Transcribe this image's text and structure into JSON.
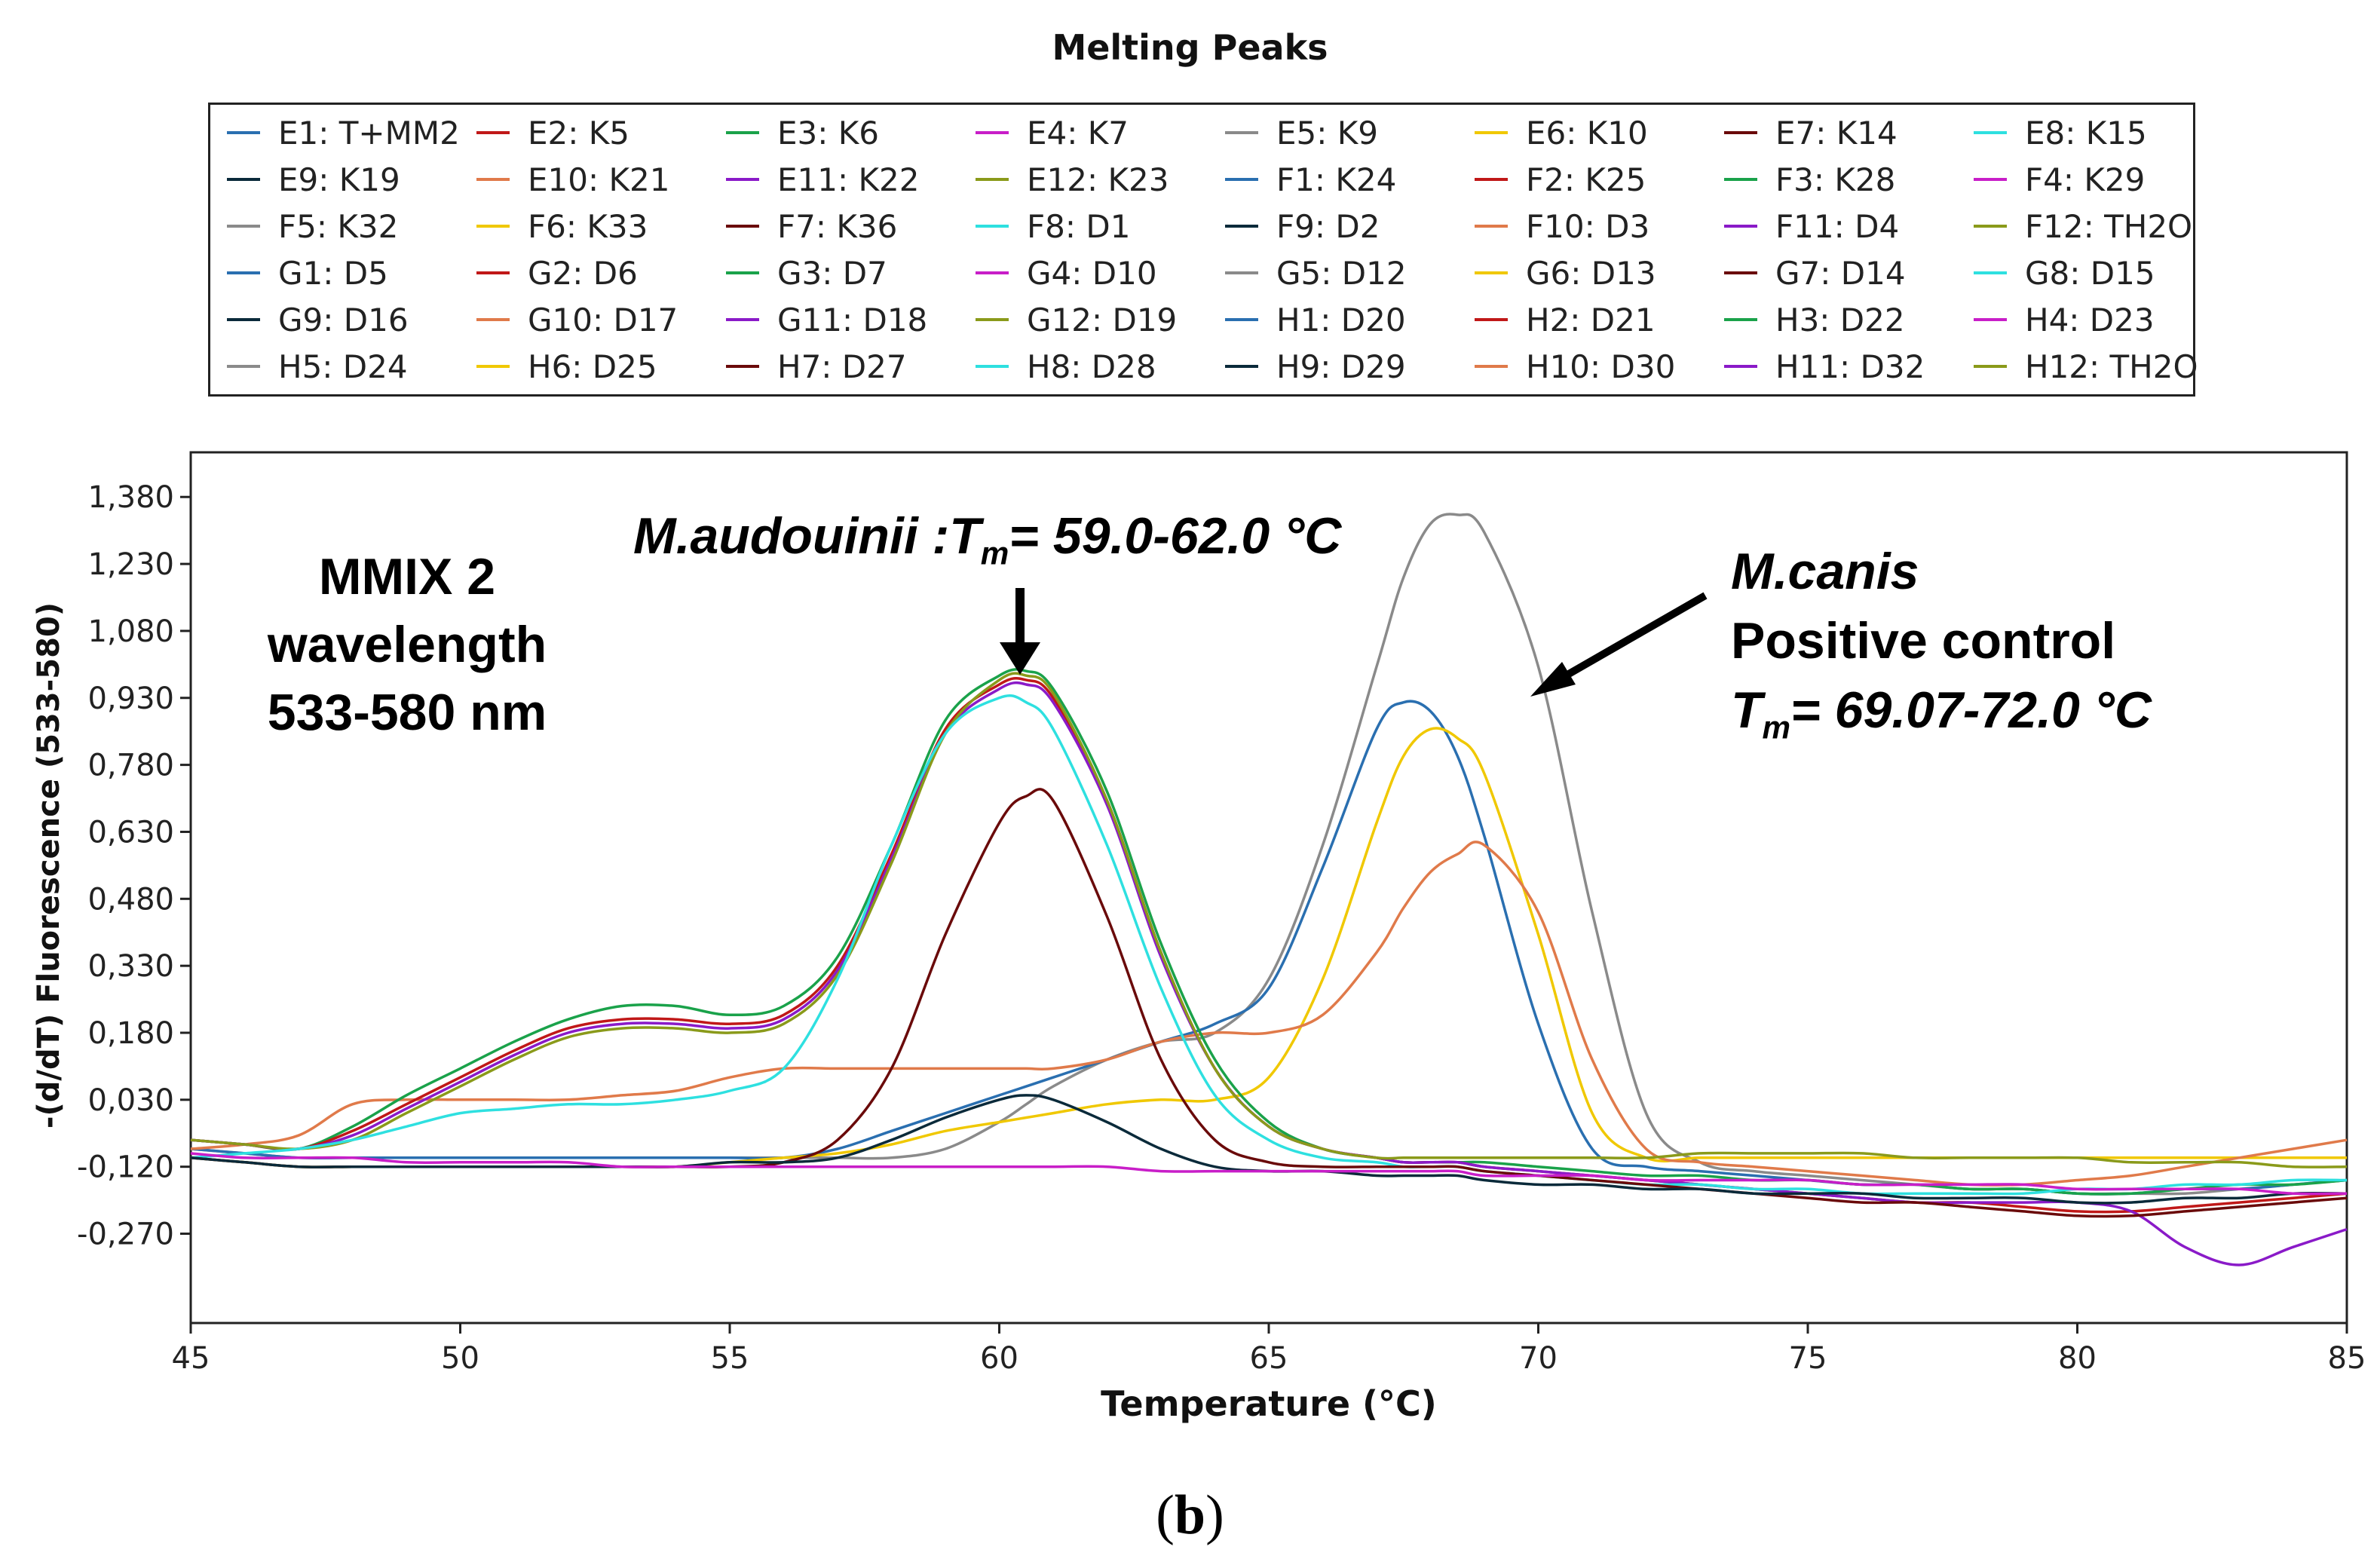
{
  "page_title": "Melting Peaks",
  "subfigure_label_open": "(",
  "subfigure_label_letter": "b",
  "subfigure_label_close": ")",
  "legend": [
    {
      "label": "E1: T+MM2",
      "color": "#2a6fb0"
    },
    {
      "label": "E2: K5",
      "color": "#c01818"
    },
    {
      "label": "E3: K6",
      "color": "#1aa24a"
    },
    {
      "label": "E4: K7",
      "color": "#c81ec8"
    },
    {
      "label": "E5: K9",
      "color": "#8a8a8a"
    },
    {
      "label": "E6: K10",
      "color": "#f0c800"
    },
    {
      "label": "E7: K14",
      "color": "#6a0a0a"
    },
    {
      "label": "E8: K15",
      "color": "#2ee0e0"
    },
    {
      "label": "E9: K19",
      "color": "#0a2a3a"
    },
    {
      "label": "E10: K21",
      "color": "#e07a4a"
    },
    {
      "label": "E11: K22",
      "color": "#8a1ac8"
    },
    {
      "label": "E12: K23",
      "color": "#8a9a1a"
    },
    {
      "label": "F1: K24",
      "color": "#2a6fb0"
    },
    {
      "label": "F2: K25",
      "color": "#c01818"
    },
    {
      "label": "F3: K28",
      "color": "#1aa24a"
    },
    {
      "label": "F4: K29",
      "color": "#c81ec8"
    },
    {
      "label": "F5: K32",
      "color": "#8a8a8a"
    },
    {
      "label": "F6: K33",
      "color": "#f0c800"
    },
    {
      "label": "F7: K36",
      "color": "#6a0a0a"
    },
    {
      "label": "F8: D1",
      "color": "#2ee0e0"
    },
    {
      "label": "F9: D2",
      "color": "#0a2a3a"
    },
    {
      "label": "F10: D3",
      "color": "#e07a4a"
    },
    {
      "label": "F11: D4",
      "color": "#8a1ac8"
    },
    {
      "label": "F12: TH2O",
      "color": "#8a9a1a"
    },
    {
      "label": "G1: D5",
      "color": "#2a6fb0"
    },
    {
      "label": "G2: D6",
      "color": "#c01818"
    },
    {
      "label": "G3: D7",
      "color": "#1aa24a"
    },
    {
      "label": "G4: D10",
      "color": "#c81ec8"
    },
    {
      "label": "G5: D12",
      "color": "#8a8a8a"
    },
    {
      "label": "G6: D13",
      "color": "#f0c800"
    },
    {
      "label": "G7: D14",
      "color": "#6a0a0a"
    },
    {
      "label": "G8: D15",
      "color": "#2ee0e0"
    },
    {
      "label": "G9: D16",
      "color": "#0a2a3a"
    },
    {
      "label": "G10: D17",
      "color": "#e07a4a"
    },
    {
      "label": "G11: D18",
      "color": "#8a1ac8"
    },
    {
      "label": "G12: D19",
      "color": "#8a9a1a"
    },
    {
      "label": "H1: D20",
      "color": "#2a6fb0"
    },
    {
      "label": "H2: D21",
      "color": "#c01818"
    },
    {
      "label": "H3: D22",
      "color": "#1aa24a"
    },
    {
      "label": "H4: D23",
      "color": "#c81ec8"
    },
    {
      "label": "H5: D24",
      "color": "#8a8a8a"
    },
    {
      "label": "H6: D25",
      "color": "#f0c800"
    },
    {
      "label": "H7: D27",
      "color": "#6a0a0a"
    },
    {
      "label": "H8: D28",
      "color": "#2ee0e0"
    },
    {
      "label": "H9: D29",
      "color": "#0a2a3a"
    },
    {
      "label": "H10: D30",
      "color": "#e07a4a"
    },
    {
      "label": "H11: D32",
      "color": "#8a1ac8"
    },
    {
      "label": "H12: TH2O",
      "color": "#8a9a1a"
    }
  ],
  "annotations": {
    "mmix_line1": "MMIX 2",
    "mmix_line2": "wavelength",
    "mmix_line3": "533-580 nm",
    "aud_species": "M.audouinii :T",
    "aud_sub": "m",
    "aud_range": "= 59.0-62.0 °C",
    "canis_species": "M.canis",
    "canis_line2": "Positive control",
    "canis_t": "T",
    "canis_sub": "m",
    "canis_range": "= 69.07-72.0 °C"
  },
  "chart_data": {
    "type": "line",
    "title": "",
    "xlabel": "Temperature (°C)",
    "ylabel": "-(d/dT) Fluorescence (533-580)",
    "xlim": [
      45,
      85
    ],
    "ylim": [
      -0.47,
      1.48
    ],
    "x_ticks": [
      45,
      50,
      55,
      60,
      65,
      70,
      75,
      80,
      85
    ],
    "y_ticks": [
      1.38,
      1.23,
      1.08,
      0.93,
      0.78,
      0.63,
      0.48,
      0.33,
      0.18,
      0.03,
      -0.12,
      -0.27
    ],
    "y_tick_labels": [
      "1,380",
      "1,230",
      "1,080",
      "0,930",
      "0,780",
      "0,630",
      "0,480",
      "0,330",
      "0,180",
      "0,030",
      "-0,120",
      "-0,270"
    ],
    "x": [
      45,
      46,
      47,
      48,
      49,
      50,
      51,
      52,
      53,
      54,
      55,
      56,
      57,
      58,
      59,
      60,
      60.5,
      61,
      62,
      63,
      64,
      65,
      66,
      67,
      67.5,
      68,
      68.5,
      69,
      70,
      71,
      72,
      73,
      74,
      75,
      76,
      77,
      78,
      79,
      80,
      81,
      82,
      83,
      84,
      85
    ],
    "series": [
      {
        "name": "E5: K9",
        "color": "#8a8a8a",
        "values": [
          -0.08,
          -0.09,
          -0.1,
          -0.1,
          -0.1,
          -0.1,
          -0.1,
          -0.1,
          -0.1,
          -0.1,
          -0.1,
          -0.1,
          -0.1,
          -0.1,
          -0.08,
          -0.02,
          0.02,
          0.06,
          0.12,
          0.16,
          0.18,
          0.3,
          0.6,
          1.0,
          1.2,
          1.32,
          1.34,
          1.3,
          1.0,
          0.45,
          0.0,
          -0.11,
          -0.13,
          -0.14,
          -0.15,
          -0.16,
          -0.17,
          -0.17,
          -0.18,
          -0.18,
          -0.18,
          -0.17,
          -0.16,
          -0.15
        ]
      },
      {
        "name": "E1: T+MM2",
        "color": "#2a6fb0",
        "values": [
          -0.08,
          -0.09,
          -0.1,
          -0.1,
          -0.1,
          -0.1,
          -0.1,
          -0.1,
          -0.1,
          -0.1,
          -0.1,
          -0.1,
          -0.08,
          -0.04,
          0.0,
          0.04,
          0.06,
          0.08,
          0.12,
          0.16,
          0.2,
          0.28,
          0.55,
          0.86,
          0.92,
          0.9,
          0.8,
          0.62,
          0.2,
          -0.08,
          -0.12,
          -0.13,
          -0.14,
          -0.15,
          -0.16,
          -0.16,
          -0.17,
          -0.17,
          -0.18,
          -0.18,
          -0.17,
          -0.17,
          -0.16,
          -0.15
        ]
      },
      {
        "name": "E6: K10",
        "color": "#f0c800",
        "values": [
          -0.1,
          -0.11,
          -0.12,
          -0.12,
          -0.12,
          -0.12,
          -0.12,
          -0.12,
          -0.12,
          -0.12,
          -0.11,
          -0.1,
          -0.09,
          -0.07,
          -0.04,
          -0.02,
          -0.01,
          0.0,
          0.02,
          0.03,
          0.03,
          0.08,
          0.3,
          0.65,
          0.8,
          0.86,
          0.84,
          0.76,
          0.4,
          0.0,
          -0.1,
          -0.1,
          -0.1,
          -0.1,
          -0.1,
          -0.1,
          -0.1,
          -0.1,
          -0.1,
          -0.1,
          -0.1,
          -0.1,
          -0.1,
          -0.1
        ]
      },
      {
        "name": "E10: K21",
        "color": "#e07a4a",
        "values": [
          -0.08,
          -0.07,
          -0.05,
          0.02,
          0.03,
          0.03,
          0.03,
          0.03,
          0.04,
          0.05,
          0.08,
          0.1,
          0.1,
          0.1,
          0.1,
          0.1,
          0.1,
          0.1,
          0.12,
          0.16,
          0.18,
          0.18,
          0.22,
          0.36,
          0.46,
          0.54,
          0.58,
          0.6,
          0.45,
          0.12,
          -0.08,
          -0.11,
          -0.12,
          -0.13,
          -0.14,
          -0.15,
          -0.16,
          -0.16,
          -0.15,
          -0.14,
          -0.12,
          -0.1,
          -0.08,
          -0.06
        ]
      },
      {
        "name": "E3: K6",
        "color": "#1aa24a",
        "values": [
          -0.06,
          -0.07,
          -0.08,
          -0.03,
          0.04,
          0.1,
          0.16,
          0.21,
          0.24,
          0.24,
          0.22,
          0.24,
          0.35,
          0.6,
          0.88,
          0.98,
          0.99,
          0.95,
          0.72,
          0.38,
          0.12,
          -0.02,
          -0.08,
          -0.1,
          -0.11,
          -0.11,
          -0.11,
          -0.11,
          -0.12,
          -0.13,
          -0.14,
          -0.14,
          -0.15,
          -0.15,
          -0.16,
          -0.16,
          -0.17,
          -0.17,
          -0.18,
          -0.18,
          -0.17,
          -0.16,
          -0.16,
          -0.15
        ]
      },
      {
        "name": "E2: K5",
        "color": "#c01818",
        "values": [
          -0.06,
          -0.07,
          -0.08,
          -0.04,
          0.02,
          0.08,
          0.14,
          0.19,
          0.21,
          0.21,
          0.2,
          0.22,
          0.33,
          0.58,
          0.86,
          0.96,
          0.97,
          0.93,
          0.7,
          0.36,
          0.1,
          -0.03,
          -0.08,
          -0.1,
          -0.11,
          -0.11,
          -0.11,
          -0.12,
          -0.13,
          -0.14,
          -0.15,
          -0.16,
          -0.17,
          -0.18,
          -0.19,
          -0.2,
          -0.2,
          -0.21,
          -0.22,
          -0.22,
          -0.21,
          -0.2,
          -0.19,
          -0.18
        ]
      },
      {
        "name": "E11: K22",
        "color": "#8a1ac8",
        "values": [
          -0.06,
          -0.07,
          -0.08,
          -0.05,
          0.01,
          0.07,
          0.13,
          0.18,
          0.2,
          0.2,
          0.19,
          0.21,
          0.32,
          0.57,
          0.85,
          0.95,
          0.96,
          0.92,
          0.69,
          0.35,
          0.1,
          -0.03,
          -0.08,
          -0.1,
          -0.11,
          -0.11,
          -0.11,
          -0.12,
          -0.13,
          -0.14,
          -0.15,
          -0.16,
          -0.17,
          -0.18,
          -0.19,
          -0.2,
          -0.2,
          -0.2,
          -0.2,
          -0.22,
          -0.3,
          -0.34,
          -0.3,
          -0.26
        ]
      },
      {
        "name": "E12: K23",
        "color": "#8a9a1a",
        "values": [
          -0.06,
          -0.07,
          -0.08,
          -0.06,
          0.0,
          0.06,
          0.12,
          0.17,
          0.19,
          0.19,
          0.18,
          0.2,
          0.31,
          0.56,
          0.85,
          0.97,
          0.98,
          0.94,
          0.7,
          0.36,
          0.1,
          -0.03,
          -0.08,
          -0.1,
          -0.1,
          -0.1,
          -0.1,
          -0.1,
          -0.1,
          -0.1,
          -0.1,
          -0.09,
          -0.09,
          -0.09,
          -0.09,
          -0.1,
          -0.1,
          -0.1,
          -0.1,
          -0.11,
          -0.11,
          -0.11,
          -0.12,
          -0.12
        ]
      },
      {
        "name": "E8: K15",
        "color": "#2ee0e0",
        "values": [
          -0.1,
          -0.09,
          -0.08,
          -0.06,
          -0.03,
          0.0,
          0.01,
          0.02,
          0.02,
          0.03,
          0.05,
          0.1,
          0.3,
          0.6,
          0.85,
          0.93,
          0.92,
          0.86,
          0.6,
          0.28,
          0.04,
          -0.06,
          -0.1,
          -0.11,
          -0.12,
          -0.12,
          -0.12,
          -0.13,
          -0.14,
          -0.15,
          -0.16,
          -0.16,
          -0.17,
          -0.17,
          -0.18,
          -0.18,
          -0.18,
          -0.18,
          -0.17,
          -0.17,
          -0.16,
          -0.16,
          -0.15,
          -0.15
        ]
      },
      {
        "name": "E7: K14",
        "color": "#6a0a0a",
        "values": [
          -0.1,
          -0.11,
          -0.12,
          -0.12,
          -0.12,
          -0.12,
          -0.12,
          -0.12,
          -0.12,
          -0.12,
          -0.12,
          -0.11,
          -0.06,
          0.1,
          0.4,
          0.65,
          0.71,
          0.7,
          0.44,
          0.12,
          -0.06,
          -0.11,
          -0.12,
          -0.12,
          -0.12,
          -0.12,
          -0.12,
          -0.13,
          -0.14,
          -0.15,
          -0.16,
          -0.17,
          -0.18,
          -0.19,
          -0.2,
          -0.2,
          -0.21,
          -0.22,
          -0.23,
          -0.23,
          -0.22,
          -0.21,
          -0.2,
          -0.19
        ]
      },
      {
        "name": "E9: K19",
        "color": "#0a2a3a",
        "values": [
          -0.1,
          -0.11,
          -0.12,
          -0.12,
          -0.12,
          -0.12,
          -0.12,
          -0.12,
          -0.12,
          -0.12,
          -0.11,
          -0.11,
          -0.1,
          -0.06,
          -0.01,
          0.03,
          0.04,
          0.03,
          -0.02,
          -0.08,
          -0.12,
          -0.13,
          -0.13,
          -0.14,
          -0.14,
          -0.14,
          -0.14,
          -0.15,
          -0.16,
          -0.16,
          -0.17,
          -0.17,
          -0.18,
          -0.18,
          -0.18,
          -0.19,
          -0.19,
          -0.19,
          -0.2,
          -0.2,
          -0.19,
          -0.19,
          -0.18,
          -0.18
        ]
      },
      {
        "name": "E4: K7",
        "color": "#c81ec8",
        "values": [
          -0.09,
          -0.1,
          -0.1,
          -0.1,
          -0.11,
          -0.11,
          -0.11,
          -0.11,
          -0.12,
          -0.12,
          -0.12,
          -0.12,
          -0.12,
          -0.12,
          -0.12,
          -0.12,
          -0.12,
          -0.12,
          -0.12,
          -0.13,
          -0.13,
          -0.13,
          -0.13,
          -0.13,
          -0.13,
          -0.13,
          -0.13,
          -0.14,
          -0.14,
          -0.14,
          -0.15,
          -0.15,
          -0.15,
          -0.15,
          -0.16,
          -0.16,
          -0.16,
          -0.16,
          -0.17,
          -0.17,
          -0.17,
          -0.17,
          -0.18,
          -0.18
        ]
      }
    ]
  }
}
